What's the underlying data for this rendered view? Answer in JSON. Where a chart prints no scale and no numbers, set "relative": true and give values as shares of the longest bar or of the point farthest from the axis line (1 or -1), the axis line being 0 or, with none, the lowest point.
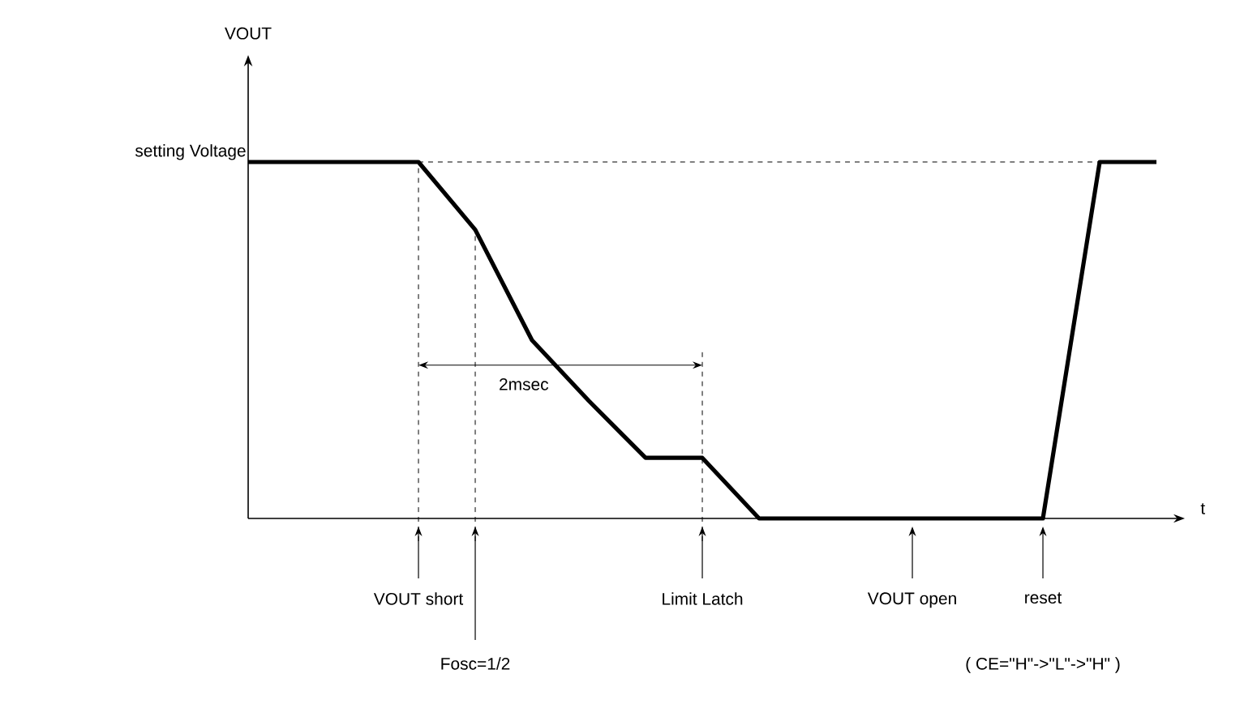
{
  "chart_data": {
    "type": "line",
    "relative": true,
    "xlabel": "t",
    "line_style": "solid",
    "marker": "none",
    "categories": [
      null,
      null,
      null,
      null,
      null,
      null,
      null,
      null,
      null,
      null,
      null,
      null,
      null,
      null,
      null,
      null,
      null
    ],
    "series": [
      {
        "color": "#000000",
        "values": [
          1,
          1,
          1,
          1,
          0.81,
          0.5,
          0.33,
          0.17,
          0.17,
          0,
          0,
          0,
          0,
          0,
          0,
          1,
          1
        ]
      }
    ],
    "annotations": [
      "setting Voltage",
      "VOUT short",
      "Fosc=1/2",
      "Limit Latch",
      "VOUT open",
      "reset",
      "( CE=\"H\"->\"L\"->\"H\" )",
      "2msec",
      "VOUT"
    ]
  }
}
